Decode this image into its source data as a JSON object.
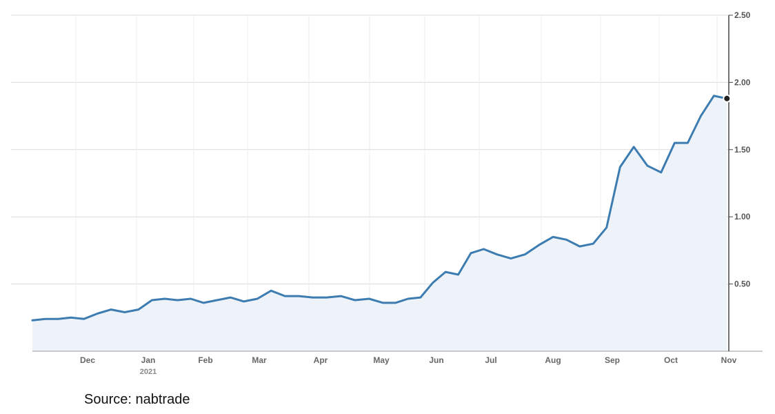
{
  "source_text": "Source: nabtrade",
  "colors": {
    "line": "#3d7cb0",
    "area": "#edf3f8",
    "grid": "#dcdcdc",
    "axis": "#444444"
  },
  "chart_data": {
    "type": "area",
    "y_axis": {
      "position": "right",
      "ticks": [
        "2.50",
        "2.00",
        "1.50",
        "1.00",
        "0.50"
      ],
      "ylim": [
        0.0,
        2.5
      ]
    },
    "x_axis": {
      "ticks": [
        {
          "label": "Dec",
          "sub": ""
        },
        {
          "label": "Jan",
          "sub": "2021"
        },
        {
          "label": "Feb",
          "sub": ""
        },
        {
          "label": "Mar",
          "sub": ""
        },
        {
          "label": "Apr",
          "sub": ""
        },
        {
          "label": "May",
          "sub": ""
        },
        {
          "label": "Jun",
          "sub": ""
        },
        {
          "label": "Jul",
          "sub": ""
        },
        {
          "label": "Aug",
          "sub": ""
        },
        {
          "label": "Sep",
          "sub": ""
        },
        {
          "label": "Oct",
          "sub": ""
        },
        {
          "label": "Nov",
          "sub": ""
        }
      ]
    },
    "grid": true,
    "legend": "none",
    "series": [
      {
        "x": [
          "2020-11-01",
          "2020-11-08",
          "2020-11-15",
          "2020-11-22",
          "2020-11-29",
          "2020-12-06",
          "2020-12-13",
          "2020-12-20",
          "2020-12-27",
          "2021-01-03",
          "2021-01-10",
          "2021-01-17",
          "2021-01-24",
          "2021-01-31",
          "2021-02-07",
          "2021-02-14",
          "2021-02-21",
          "2021-02-28",
          "2021-03-07",
          "2021-03-14",
          "2021-03-21",
          "2021-03-28",
          "2021-04-04",
          "2021-04-11",
          "2021-04-18",
          "2021-04-25",
          "2021-05-02",
          "2021-05-09",
          "2021-05-16",
          "2021-05-23",
          "2021-05-30",
          "2021-06-06",
          "2021-06-13",
          "2021-06-20",
          "2021-06-27",
          "2021-07-04",
          "2021-07-11",
          "2021-07-18",
          "2021-07-25",
          "2021-08-01",
          "2021-08-08",
          "2021-08-15",
          "2021-08-22",
          "2021-08-29",
          "2021-09-05",
          "2021-09-12",
          "2021-09-19",
          "2021-09-26",
          "2021-10-03",
          "2021-10-10",
          "2021-10-17",
          "2021-10-24",
          "2021-10-31"
        ],
        "values": [
          0.23,
          0.24,
          0.24,
          0.25,
          0.24,
          0.28,
          0.31,
          0.29,
          0.31,
          0.38,
          0.39,
          0.38,
          0.39,
          0.36,
          0.38,
          0.4,
          0.37,
          0.39,
          0.45,
          0.41,
          0.41,
          0.4,
          0.4,
          0.41,
          0.38,
          0.39,
          0.36,
          0.36,
          0.39,
          0.4,
          0.51,
          0.59,
          0.57,
          0.73,
          0.76,
          0.72,
          0.69,
          0.72,
          0.79,
          0.85,
          0.83,
          0.78,
          0.8,
          0.92,
          1.37,
          1.52,
          1.38,
          1.33,
          1.55,
          1.55,
          1.75,
          1.9,
          1.88
        ]
      }
    ]
  }
}
